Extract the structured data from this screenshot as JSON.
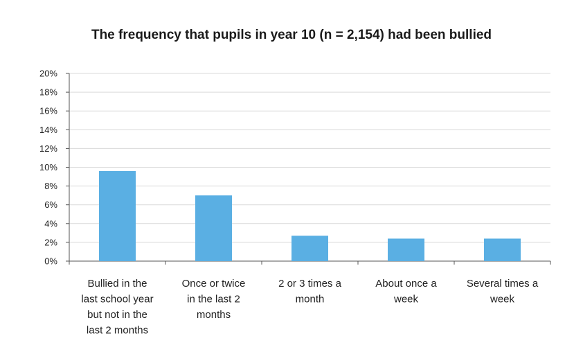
{
  "chart_data": {
    "type": "bar",
    "title": "The frequency that pupils in year 10 (n = 2,154) had been bullied",
    "xlabel": "",
    "ylabel": "",
    "categories": [
      [
        "Bullied in the",
        "last school year",
        "but not in the",
        "last 2 months"
      ],
      [
        "Once or twice",
        "in the last 2",
        "months"
      ],
      [
        "2 or 3 times a",
        "month"
      ],
      [
        "About once a",
        "week"
      ],
      [
        "Several times a",
        "week"
      ]
    ],
    "values": [
      9.6,
      7.0,
      2.7,
      2.4,
      2.4
    ],
    "ylim": [
      0,
      20
    ],
    "yticks": [
      0,
      2,
      4,
      6,
      8,
      10,
      12,
      14,
      16,
      18,
      20
    ],
    "ytick_suffix": "%",
    "grid": true,
    "legend": "none",
    "bar_color": "#5aafe3"
  }
}
